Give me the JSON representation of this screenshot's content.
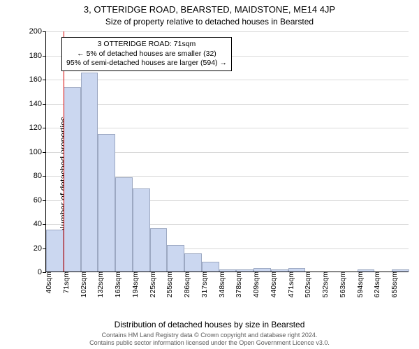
{
  "title": "3, OTTERIDGE ROAD, BEARSTED, MAIDSTONE, ME14 4JP",
  "subtitle": "Size of property relative to detached houses in Bearsted",
  "xlabel": "Distribution of detached houses by size in Bearsted",
  "ylabel": "Number of detached properties",
  "chart": {
    "type": "histogram",
    "ylim": [
      0,
      200
    ],
    "ytick_step": 20,
    "background_color": "#ffffff",
    "grid_color": "#d9d9d9",
    "bar_fill": "#cbd7f0",
    "bar_stroke": "#9ca8c2",
    "marker_color": "#d40000",
    "categories": [
      "40sqm",
      "71sqm",
      "102sqm",
      "132sqm",
      "163sqm",
      "194sqm",
      "225sqm",
      "255sqm",
      "286sqm",
      "317sqm",
      "348sqm",
      "378sqm",
      "409sqm",
      "440sqm",
      "471sqm",
      "502sqm",
      "532sqm",
      "563sqm",
      "594sqm",
      "624sqm",
      "655sqm"
    ],
    "values": [
      35,
      153,
      165,
      114,
      78,
      69,
      36,
      22,
      15,
      8,
      2,
      2,
      3,
      2,
      3,
      0,
      0,
      0,
      2,
      0,
      2
    ],
    "bar_width": 1.0,
    "marker_index": 1,
    "annotation": {
      "line1": "3 OTTERIDGE ROAD: 71sqm",
      "line2": "← 5% of detached houses are smaller (32)",
      "line3": "95% of semi-detached houses are larger (594) →"
    }
  },
  "attribution": {
    "line1": "Contains HM Land Registry data © Crown copyright and database right 2024.",
    "line2": "Contains public sector information licensed under the Open Government Licence v3.0."
  }
}
